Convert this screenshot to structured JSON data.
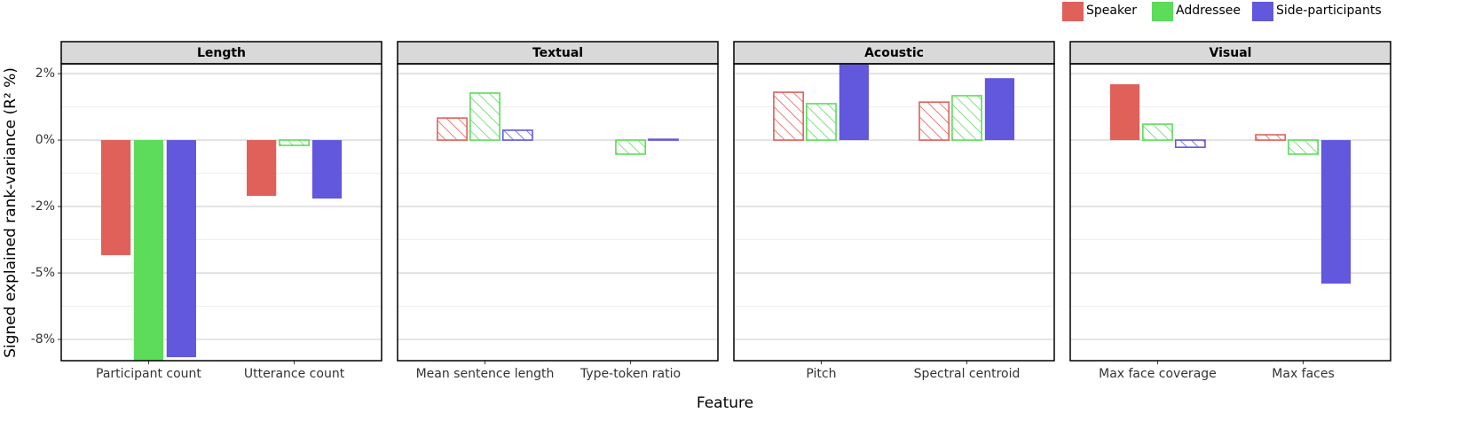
{
  "chart_data": {
    "type": "bar",
    "ylabel": "Signed explained rank-variance (R² %)",
    "xlabel": "Feature",
    "ylim": [
      -8.3,
      2.87
    ],
    "yticks": [
      {
        "value": 2.5,
        "label": "2%"
      },
      {
        "value": 0,
        "label": "0%"
      },
      {
        "value": -2.5,
        "label": "-2%"
      },
      {
        "value": -5,
        "label": "-5%"
      },
      {
        "value": -7.5,
        "label": "-8%"
      }
    ],
    "grid": true,
    "legend": "top-right",
    "facets": [
      {
        "title": "Length",
        "categories": [
          "Participant count",
          "Utterance count"
        ]
      },
      {
        "title": "Textual",
        "categories": [
          "Mean sentence length",
          "Type-token ratio"
        ]
      },
      {
        "title": "Acoustic",
        "categories": [
          "Pitch",
          "Spectral centroid"
        ]
      },
      {
        "title": "Visual",
        "categories": [
          "Max face coverage",
          "Max faces"
        ]
      }
    ],
    "series": [
      {
        "name": "Speaker",
        "color": "#e0605a",
        "values": [
          -4.33,
          -2.1,
          0.83,
          0,
          1.8,
          1.43,
          2.1,
          0.2
        ],
        "hatched": [
          false,
          false,
          true,
          true,
          true,
          true,
          false,
          true
        ]
      },
      {
        "name": "Addressee",
        "color": "#5ddc5a",
        "values": [
          -8.5,
          -0.2,
          1.77,
          -0.53,
          1.37,
          1.67,
          0.6,
          -0.53
        ],
        "hatched": [
          false,
          true,
          true,
          true,
          true,
          true,
          true,
          true
        ]
      },
      {
        "name": "Side-participants",
        "color": "#6158dd",
        "values": [
          -8.17,
          -2.2,
          0.37,
          0.03,
          2.9,
          2.33,
          -0.27,
          -5.4
        ],
        "hatched": [
          false,
          false,
          true,
          true,
          false,
          false,
          true,
          false
        ]
      }
    ]
  }
}
